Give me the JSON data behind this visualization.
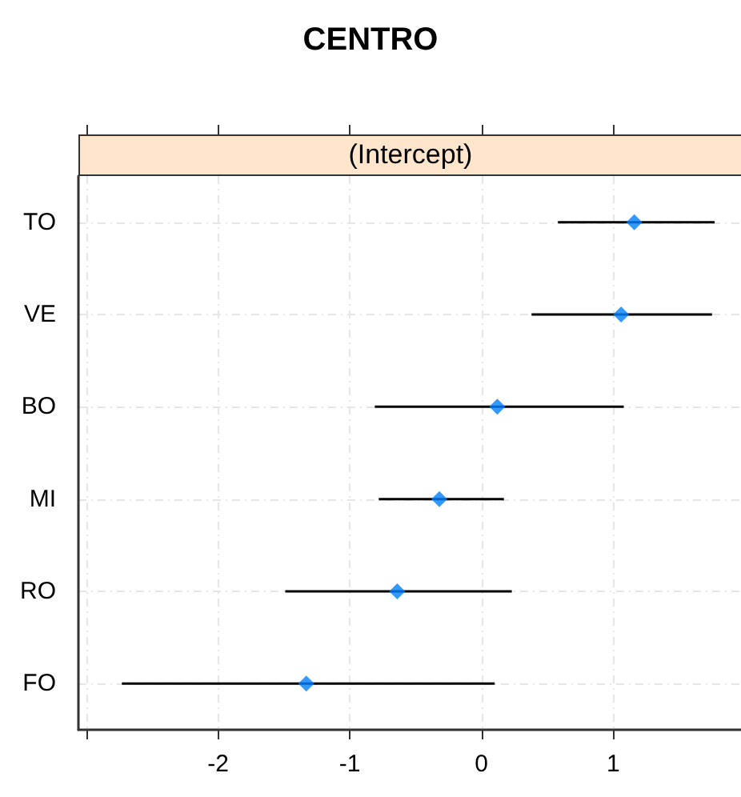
{
  "chart_data": {
    "type": "scatter",
    "title": "CENTRO",
    "subtitle": "(Intercept)",
    "orientation": "horizontal",
    "categories": [
      "TO",
      "VE",
      "BO",
      "MI",
      "RO",
      "FO"
    ],
    "values": [
      1.16,
      1.06,
      0.12,
      -0.32,
      -0.64,
      -1.33
    ],
    "errors": [
      [
        0.58,
        1.77
      ],
      [
        0.38,
        1.75
      ],
      [
        -0.81,
        1.08
      ],
      [
        -0.78,
        0.17
      ],
      [
        -1.49,
        0.23
      ],
      [
        -2.73,
        0.1
      ]
    ],
    "color": "#0080ff",
    "marker": "diamond",
    "xlim": [
      -3.06,
      1.97
    ],
    "xticks": [
      {
        "value": -3,
        "label": null
      },
      -2,
      -1,
      0,
      1
    ],
    "grid": true
  }
}
